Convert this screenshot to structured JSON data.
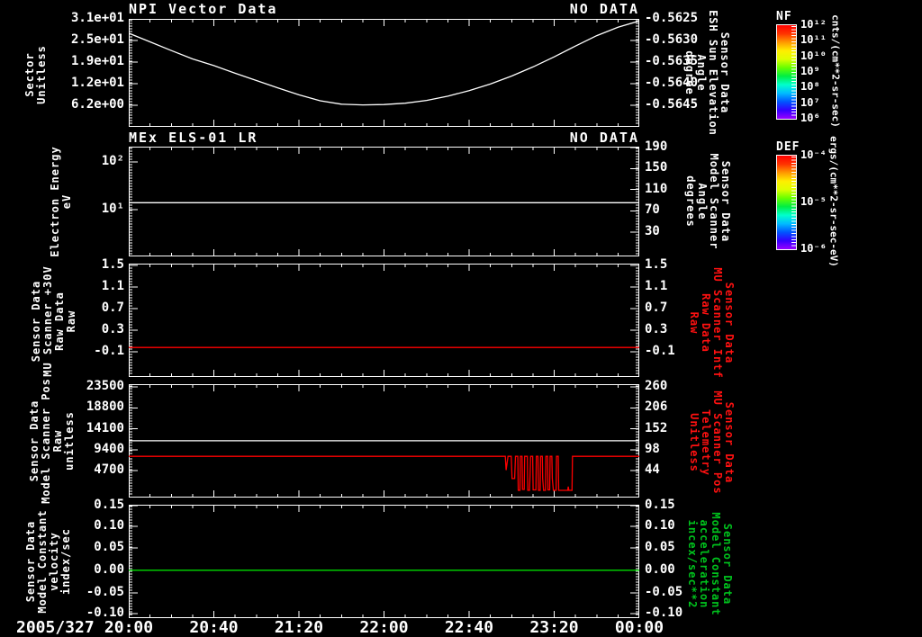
{
  "date_label": "2005/327",
  "x_axis": {
    "tick_labels": [
      "20:00",
      "20:40",
      "21:20",
      "22:00",
      "22:40",
      "23:20",
      "00:00"
    ]
  },
  "panels": [
    {
      "title": "NPI Vector Data",
      "status": "NO DATA",
      "left_label": "Sector\nUnitless",
      "right_label": "Sensor Data\nESH Sun Elevation\nAngle\ndegree",
      "right_label_color": "#ffffff",
      "left_ticks": [
        "3.1e+01",
        "2.5e+01",
        "1.9e+01",
        "1.2e+01",
        "6.2e+00"
      ],
      "right_ticks": [
        "-0.5625",
        "-0.5630",
        "-0.5635",
        "-0.5640",
        "-0.5645"
      ]
    },
    {
      "title": "MEx ELS-01 LR",
      "status": "NO DATA",
      "left_label": "Electron Energy\neV",
      "right_label": "Sensor Data\nModel Scanner\nAngle\ndegrees",
      "right_label_color": "#ffffff",
      "left_ticks": [
        "10²",
        "10¹"
      ],
      "right_ticks": [
        "190",
        "150",
        "110",
        "70",
        "30"
      ]
    },
    {
      "title": "",
      "status": "",
      "left_label": "Sensor Data\nMU Scanner +30V\nRaw Data\nRaw",
      "right_label": "Sensor Data\nMU Scanner Intf\nRaw Data\nRaw",
      "right_label_color": "#ff1111",
      "left_ticks": [
        "1.5",
        "1.1",
        "0.7",
        "0.3",
        "-0.1"
      ],
      "right_ticks": [
        "1.5",
        "1.1",
        "0.7",
        "0.3",
        "-0.1"
      ]
    },
    {
      "title": "",
      "status": "",
      "left_label": "Sensor Data\nModel Scanner Pos\nRaw\nunitless",
      "right_label": "Sensor Data\nMU Scanner Pos\nTelemetry\nUnitless",
      "right_label_color": "#ff1111",
      "left_ticks": [
        "23500",
        "18800",
        "14100",
        "9400",
        "4700"
      ],
      "right_ticks": [
        "260",
        "206",
        "152",
        "98",
        "44"
      ]
    },
    {
      "title": "",
      "status": "",
      "left_label": "Sensor Data\nModel Constant\nvelocity\nindex/sec",
      "right_label": "Sensor Data\nModel Constant\nacceleration\nincex/sec**2",
      "right_label_color": "#00c21d",
      "left_ticks": [
        "0.15",
        "0.10",
        "0.05",
        "0.00",
        "-0.05",
        "-0.10"
      ],
      "right_ticks": [
        "0.15",
        "0.10",
        "0.05",
        "0.00",
        "-0.05",
        "-0.10"
      ]
    }
  ],
  "colorbars": [
    {
      "name": "NF",
      "tick_labels": [
        "10¹²",
        "10¹¹",
        "10¹⁰",
        "10⁹",
        "10⁸",
        "10⁷",
        "10⁶"
      ],
      "units": "cnts/(cm**2-sr-sec)",
      "gradient_bottom_to_top": [
        "#9900ff",
        "#3300ff",
        "#0055ff",
        "#00bbff",
        "#00ffcc",
        "#00ee44",
        "#66ff00",
        "#ddff00",
        "#ffee00",
        "#ff9900",
        "#ff3300",
        "#ff0000"
      ]
    },
    {
      "name": "DEF",
      "tick_labels": [
        "10⁻⁴",
        "10⁻⁵",
        "10⁻⁶"
      ],
      "units": "ergs/(cm**2-sr-sec-eV)",
      "gradient_bottom_to_top": [
        "#9900ff",
        "#3300ff",
        "#0055ff",
        "#00bbff",
        "#00ffcc",
        "#00ee44",
        "#66ff00",
        "#ddff00",
        "#ffee00",
        "#ff9900",
        "#ff3300",
        "#ff0000"
      ]
    }
  ],
  "chart_data": [
    {
      "type": "line",
      "title": "NPI Vector Data",
      "status": "NO DATA",
      "ylabel": "Sector Unitless",
      "right_ylabel": "Sensor Data ESH Sun Elevation Angle degree",
      "x_start": "2005/327 20:00",
      "x_end": "00:00",
      "x_range_minutes": [
        0,
        240
      ],
      "ylim": [
        0,
        31
      ],
      "right_ylim": [
        -0.565,
        -0.5625
      ],
      "series": [
        {
          "name": "Sector",
          "color": "#ffffff",
          "points": [
            [
              0,
              26.9
            ],
            [
              10,
              24.4
            ],
            [
              20,
              21.9
            ],
            [
              30,
              19.5
            ],
            [
              40,
              17.6
            ],
            [
              50,
              15.4
            ],
            [
              60,
              13.3
            ],
            [
              70,
              11.2
            ],
            [
              80,
              9.2
            ],
            [
              90,
              7.5
            ],
            [
              100,
              6.5
            ],
            [
              110,
              6.3
            ],
            [
              120,
              6.4
            ],
            [
              130,
              6.8
            ],
            [
              140,
              7.6
            ],
            [
              150,
              8.8
            ],
            [
              160,
              10.4
            ],
            [
              170,
              12.3
            ],
            [
              180,
              14.6
            ],
            [
              190,
              17.2
            ],
            [
              200,
              20.1
            ],
            [
              210,
              23.2
            ],
            [
              220,
              26.2
            ],
            [
              230,
              28.6
            ],
            [
              240,
              30.4
            ]
          ]
        }
      ]
    },
    {
      "type": "line",
      "title": "MEx ELS-01 LR",
      "status": "NO DATA",
      "ylabel": "Electron Energy eV",
      "right_ylabel": "Sensor Data Model Scanner Angle degrees",
      "yscale": "log",
      "x_range_minutes": [
        0,
        240
      ],
      "ylim": [
        1.05,
        209
      ],
      "right_ylim": [
        -16,
        190
      ],
      "series": [
        {
          "name": "Electron Energy",
          "color": "#ffffff",
          "points": [
            [
              0,
              14
            ],
            [
              240,
              14
            ]
          ]
        }
      ]
    },
    {
      "type": "line",
      "title": "",
      "ylabel": "Sensor Data MU Scanner +30V Raw Data Raw",
      "right_ylabel": "Sensor Data MU Scanner Intf Raw Data Raw",
      "x_range_minutes": [
        0,
        240
      ],
      "ylim": [
        -0.566,
        1.534
      ],
      "series": [
        {
          "name": "MU Scanner +30V Raw",
          "color": "#ff0000",
          "points": [
            [
              0,
              -0.02
            ],
            [
              240,
              -0.02
            ]
          ]
        }
      ]
    },
    {
      "type": "line",
      "title": "",
      "ylabel": "Sensor Data Model Scanner Pos Raw unitless",
      "right_ylabel": "Sensor Data MU Scanner Pos Telemetry Unitless",
      "x_range_minutes": [
        0,
        240
      ],
      "ylim": [
        -1363,
        24111
      ],
      "right_ylim": [
        -15,
        277
      ],
      "series": [
        {
          "name": "Model Scanner Pos Raw",
          "color": "#ffffff",
          "points": [
            [
              0,
              11400
            ],
            [
              240,
              11400
            ]
          ]
        },
        {
          "name": "MU Scanner Pos Telemetry",
          "color": "#ff0000",
          "points": [
            [
              0,
              7900
            ],
            [
              177,
              7900
            ],
            [
              177.4,
              4800
            ],
            [
              178.3,
              7900
            ],
            [
              179.8,
              7900
            ],
            [
              180.2,
              2900
            ],
            [
              181.4,
              2900
            ],
            [
              181.8,
              7900
            ],
            [
              182.9,
              7900
            ],
            [
              183.1,
              250
            ],
            [
              183.9,
              250
            ],
            [
              184.1,
              7900
            ],
            [
              184.9,
              7900
            ],
            [
              185.1,
              450
            ],
            [
              185.9,
              450
            ],
            [
              186.1,
              7900
            ],
            [
              187.4,
              7900
            ],
            [
              187.6,
              250
            ],
            [
              188.4,
              250
            ],
            [
              188.6,
              3000
            ],
            [
              188.9,
              7900
            ],
            [
              189.9,
              7900
            ],
            [
              190.1,
              350
            ],
            [
              191.4,
              350
            ],
            [
              191.6,
              7900
            ],
            [
              192.4,
              7900
            ],
            [
              192.6,
              250
            ],
            [
              193.4,
              250
            ],
            [
              193.6,
              7900
            ],
            [
              194.4,
              7900
            ],
            [
              194.6,
              2900
            ],
            [
              195,
              250
            ],
            [
              195.9,
              250
            ],
            [
              196.1,
              7900
            ],
            [
              196.9,
              7900
            ],
            [
              197.1,
              350
            ],
            [
              197.9,
              350
            ],
            [
              198.1,
              7900
            ],
            [
              198.9,
              7900
            ],
            [
              199.1,
              2900
            ],
            [
              199.6,
              250
            ],
            [
              200.9,
              250
            ],
            [
              201.1,
              7900
            ],
            [
              201.9,
              7900
            ],
            [
              202.1,
              250
            ],
            [
              206.4,
              250
            ],
            [
              206.6,
              1100
            ],
            [
              206.9,
              250
            ],
            [
              208.4,
              250
            ],
            [
              208.6,
              7900
            ],
            [
              213,
              7900
            ],
            [
              240,
              7900
            ]
          ]
        }
      ]
    },
    {
      "type": "line",
      "title": "",
      "ylabel": "Sensor Data Model Constant velocity index/sec",
      "right_ylabel": "Sensor Data Model Constant acceleration incex/sec**2",
      "x_range_minutes": [
        0,
        240
      ],
      "ylim": [
        -0.111,
        0.152
      ],
      "series": [
        {
          "name": "Model Constant velocity",
          "color": "#00dd00",
          "points": [
            [
              0,
              0
            ],
            [
              240,
              0
            ]
          ]
        }
      ]
    }
  ]
}
